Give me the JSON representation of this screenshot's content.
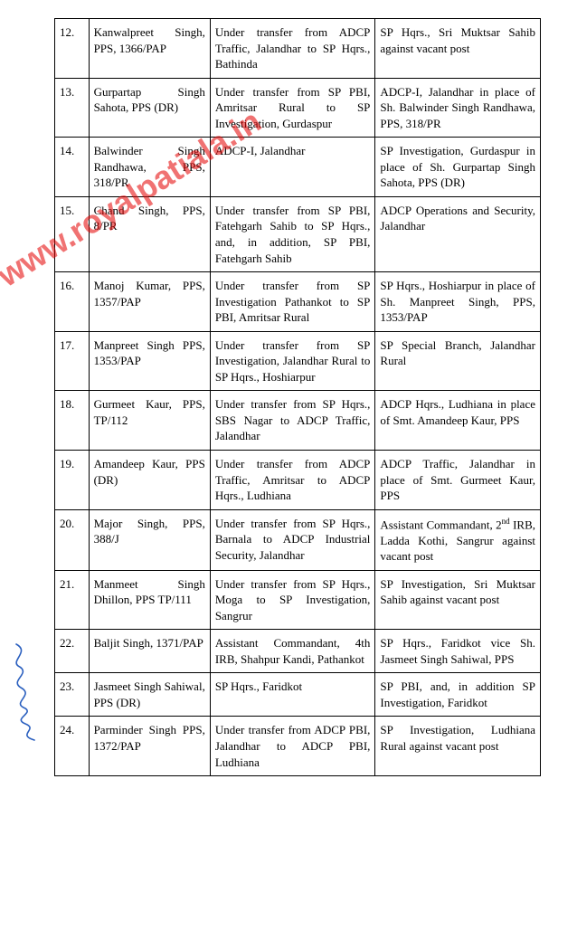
{
  "watermark_text": "www.royalpatiala.in",
  "watermark_color": "#e40000",
  "signature_color": "#2a5fbf",
  "columns": [
    "sn",
    "name",
    "from",
    "to"
  ],
  "rows": [
    {
      "sn": "12.",
      "name": "Kanwalpreet Singh, PPS, 1366/PAP",
      "from": "Under transfer from ADCP Traffic, Jalandhar to SP Hqrs., Bathinda",
      "to": "SP Hqrs., Sri Muktsar Sahib against vacant post"
    },
    {
      "sn": "13.",
      "name": "Gurpartap Singh Sahota, PPS (DR)",
      "from": "Under transfer from SP PBI, Amritsar Rural to SP Investigation, Gurdaspur",
      "to": "ADCP-I, Jalandhar in place of Sh. Balwinder Singh Randhawa, PPS, 318/PR"
    },
    {
      "sn": "14.",
      "name": "Balwinder Singh Randhawa, PPS, 318/PR",
      "from": "ADCP-I, Jalandhar",
      "to": "SP Investigation, Gurdaspur in place of Sh. Gurpartap Singh Sahota, PPS (DR)"
    },
    {
      "sn": "15.",
      "name": "Chand Singh, PPS, 8/PR",
      "from": "Under transfer from SP PBI, Fatehgarh Sahib to SP Hqrs., and, in addition, SP PBI, Fatehgarh Sahib",
      "to": "ADCP Operations and Security, Jalandhar"
    },
    {
      "sn": "16.",
      "name": "Manoj Kumar, PPS, 1357/PAP",
      "from": "Under transfer from SP Investigation Pathankot to SP PBI, Amritsar Rural",
      "to": "SP Hqrs., Hoshiarpur in place of Sh. Manpreet Singh, PPS, 1353/PAP"
    },
    {
      "sn": "17.",
      "name": "Manpreet Singh PPS, 1353/PAP",
      "from": "Under transfer from SP Investigation, Jalandhar Rural to SP Hqrs., Hoshiarpur",
      "to": "SP Special Branch, Jalandhar Rural"
    },
    {
      "sn": "18.",
      "name": "Gurmeet Kaur, PPS, TP/112",
      "from": "Under transfer from SP Hqrs., SBS Nagar to ADCP Traffic, Jalandhar",
      "to": "ADCP Hqrs., Ludhiana in place of Smt. Amandeep Kaur, PPS"
    },
    {
      "sn": "19.",
      "name": "Amandeep Kaur, PPS (DR)",
      "from": "Under transfer from ADCP Traffic, Amritsar to ADCP Hqrs., Ludhiana",
      "to": "ADCP Traffic, Jalandhar in place of Smt. Gurmeet Kaur, PPS"
    },
    {
      "sn": "20.",
      "name": "Major Singh, PPS, 388/J",
      "from": "Under transfer from SP Hqrs., Barnala to ADCP Industrial Security, Jalandhar",
      "to_html": "Assistant Commandant, 2<sup>nd</sup> IRB, Ladda Kothi, Sangrur against vacant post"
    },
    {
      "sn": "21.",
      "name": "Manmeet Singh Dhillon, PPS TP/111",
      "from": "Under transfer from SP Hqrs., Moga to SP Investigation, Sangrur",
      "to": "SP Investigation, Sri Muktsar Sahib against vacant post"
    },
    {
      "sn": "22.",
      "name": "Baljit Singh, 1371/PAP",
      "from": "Assistant Commandant, 4th IRB, Shahpur Kandi, Pathankot",
      "to": "SP Hqrs., Faridkot vice Sh. Jasmeet Singh Sahiwal, PPS"
    },
    {
      "sn": "23.",
      "name": "Jasmeet Singh Sahiwal, PPS (DR)",
      "from": "SP Hqrs., Faridkot",
      "to": "SP PBI, and, in addition SP Investigation, Faridkot"
    },
    {
      "sn": "24.",
      "name": "Parminder Singh PPS, 1372/PAP",
      "from": "Under transfer from ADCP PBI, Jalandhar to ADCP PBI, Ludhiana",
      "to": "SP Investigation, Ludhiana Rural against vacant post"
    }
  ]
}
